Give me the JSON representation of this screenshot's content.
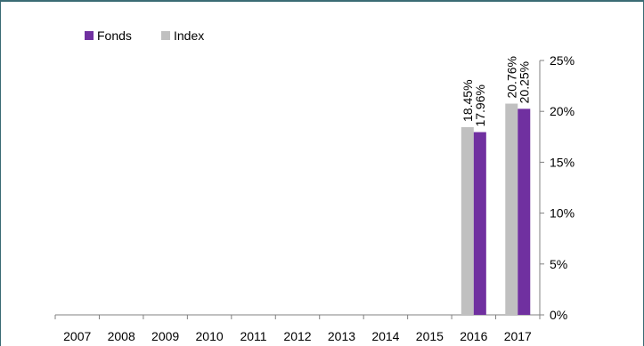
{
  "chart_data": {
    "type": "bar",
    "categories": [
      "2007",
      "2008",
      "2009",
      "2010",
      "2011",
      "2012",
      "2013",
      "2014",
      "2015",
      "2016",
      "2017"
    ],
    "series": [
      {
        "name": "Index",
        "color": "#c0c0c0",
        "values": [
          null,
          null,
          null,
          null,
          null,
          null,
          null,
          null,
          null,
          18.45,
          20.76
        ],
        "labels": [
          null,
          null,
          null,
          null,
          null,
          null,
          null,
          null,
          null,
          "18.45%",
          "20.76%"
        ]
      },
      {
        "name": "Fonds",
        "color": "#7030a0",
        "values": [
          null,
          null,
          null,
          null,
          null,
          null,
          null,
          null,
          null,
          17.96,
          20.25
        ],
        "labels": [
          null,
          null,
          null,
          null,
          null,
          null,
          null,
          null,
          null,
          "17.96%",
          "20.25%"
        ]
      }
    ],
    "legend_order": [
      "Fonds",
      "Index"
    ],
    "y_axis": {
      "position": "right",
      "ylim": [
        0,
        25
      ],
      "ticks": [
        0,
        5,
        10,
        15,
        20,
        25
      ],
      "tick_labels": [
        "0%",
        "5%",
        "10%",
        "15%",
        "20%",
        "25%"
      ]
    },
    "grid": false,
    "legend_position": "top-left"
  }
}
